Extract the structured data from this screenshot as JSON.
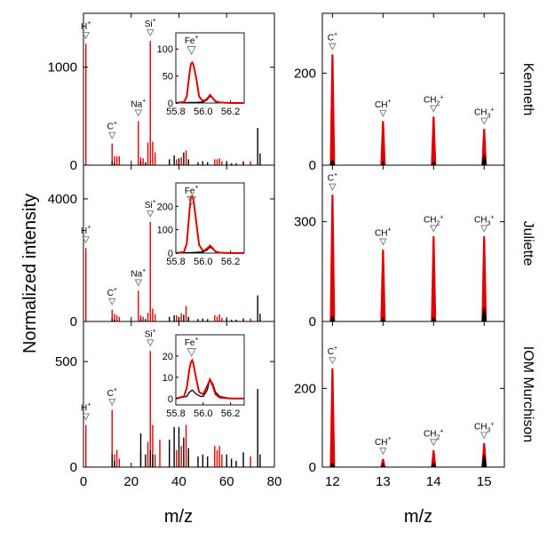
{
  "colors": {
    "red": "#e00000",
    "black": "#000000",
    "marker": "#777777"
  },
  "x_axis_label": "m/z",
  "y_axis_label": "Normalized intensity",
  "chart_data": [
    {
      "type": "bar",
      "sample": "Kenneth",
      "xlim": [
        0,
        80
      ],
      "ylim": [
        0,
        1550
      ],
      "xticks": [
        "0",
        "20",
        "40",
        "60",
        "80"
      ],
      "yticks": [
        {
          "value": 0,
          "label": "0"
        },
        {
          "value": 1000,
          "label": "1000"
        }
      ],
      "series": [
        {
          "color": "red",
          "x": [
            1,
            12,
            13,
            14,
            15,
            23,
            24,
            25,
            27,
            28,
            29,
            30,
            39,
            41,
            43,
            44,
            55,
            56,
            57,
            58,
            70
          ],
          "y": [
            1240,
            220,
            90,
            90,
            90,
            450,
            80,
            70,
            230,
            1270,
            240,
            130,
            60,
            80,
            150,
            40,
            60,
            60,
            70,
            40,
            40
          ]
        },
        {
          "color": "black",
          "x": [
            12,
            13,
            24,
            26,
            36,
            38,
            40,
            42,
            44,
            48,
            50,
            52,
            60,
            62,
            64,
            67,
            73,
            74
          ],
          "y": [
            40,
            20,
            40,
            30,
            60,
            100,
            70,
            130,
            60,
            30,
            40,
            30,
            30,
            20,
            20,
            40,
            380,
            120
          ]
        }
      ],
      "annotations": [
        {
          "label": "H",
          "sup": "+",
          "x": 1,
          "y": 1240
        },
        {
          "label": "C",
          "sup": "+",
          "x": 12,
          "y": 220
        },
        {
          "label": "Na",
          "sup": "+",
          "x": 23,
          "y": 450
        },
        {
          "label": "Si",
          "sup": "+",
          "x": 28,
          "y": 1270
        }
      ],
      "inset": {
        "xlim": [
          55.8,
          56.3
        ],
        "ylim": [
          0,
          130
        ],
        "xticks": [
          {
            "value": 55.8,
            "label": "55.8"
          },
          {
            "value": 56.0,
            "label": "56.0"
          },
          {
            "value": 56.2,
            "label": "56.2"
          }
        ],
        "yticks": [
          {
            "value": 0,
            "label": "0"
          },
          {
            "value": 50,
            "label": "50"
          },
          {
            "value": 100,
            "label": "100"
          }
        ],
        "label": "Fe",
        "sup": "+",
        "series": [
          {
            "color": "red",
            "x": [
              55.8,
              55.86,
              55.88,
              55.9,
              55.91,
              55.92,
              55.93,
              55.95,
              55.97,
              56.0,
              56.03,
              56.05,
              56.07,
              56.09,
              56.12,
              56.2,
              56.3
            ],
            "y": [
              0,
              2,
              12,
              55,
              72,
              75,
              70,
              45,
              12,
              3,
              8,
              15,
              9,
              3,
              1,
              0,
              0
            ]
          },
          {
            "color": "black",
            "x": [
              55.8,
              55.9,
              55.95,
              56.0,
              56.03,
              56.05,
              56.07,
              56.09,
              56.12,
              56.2,
              56.3
            ],
            "y": [
              0,
              1,
              1,
              2,
              6,
              13,
              9,
              4,
              1,
              0,
              0
            ]
          }
        ]
      }
    },
    {
      "type": "bar",
      "sample": "Juliette",
      "xlim": [
        0,
        80
      ],
      "ylim": [
        0,
        5100
      ],
      "xticks": [
        "0",
        "20",
        "40",
        "60",
        "80"
      ],
      "yticks": [
        {
          "value": 0,
          "label": "0"
        },
        {
          "value": 4000,
          "label": "4000"
        }
      ],
      "series": [
        {
          "color": "red",
          "x": [
            1,
            12,
            13,
            14,
            15,
            23,
            24,
            25,
            27,
            28,
            29,
            30,
            39,
            41,
            43,
            44,
            55,
            56,
            57,
            58,
            70
          ],
          "y": [
            2400,
            380,
            250,
            200,
            150,
            1000,
            200,
            150,
            280,
            3250,
            420,
            230,
            200,
            260,
            500,
            120,
            200,
            160,
            230,
            120,
            100
          ]
        },
        {
          "color": "black",
          "x": [
            12,
            13,
            24,
            26,
            36,
            38,
            40,
            42,
            44,
            48,
            50,
            52,
            60,
            62,
            64,
            67,
            73,
            74
          ],
          "y": [
            100,
            60,
            100,
            80,
            150,
            200,
            150,
            220,
            150,
            80,
            100,
            80,
            80,
            60,
            60,
            100,
            850,
            250
          ]
        }
      ],
      "annotations": [
        {
          "label": "H",
          "sup": "+",
          "x": 1,
          "y": 2400
        },
        {
          "label": "C",
          "sup": "+",
          "x": 12,
          "y": 380
        },
        {
          "label": "Na",
          "sup": "+",
          "x": 23,
          "y": 1000
        },
        {
          "label": "Si",
          "sup": "+",
          "x": 28,
          "y": 3250
        }
      ],
      "inset": {
        "xlim": [
          55.8,
          56.3
        ],
        "ylim": [
          0,
          300
        ],
        "xticks": [
          {
            "value": 55.8,
            "label": "55.8"
          },
          {
            "value": 56.0,
            "label": "56.0"
          },
          {
            "value": 56.2,
            "label": "56.2"
          }
        ],
        "yticks": [
          {
            "value": 0,
            "label": "0"
          },
          {
            "value": 100,
            "label": "100"
          },
          {
            "value": 200,
            "label": "200"
          }
        ],
        "label": "Fe",
        "sup": "+",
        "series": [
          {
            "color": "red",
            "x": [
              55.8,
              55.86,
              55.88,
              55.9,
              55.91,
              55.92,
              55.93,
              55.95,
              55.97,
              56.0,
              56.03,
              56.05,
              56.07,
              56.09,
              56.12,
              56.2,
              56.3
            ],
            "y": [
              0,
              5,
              40,
              180,
              240,
              245,
              225,
              130,
              35,
              8,
              20,
              32,
              20,
              6,
              2,
              0,
              0
            ]
          },
          {
            "color": "black",
            "x": [
              55.8,
              55.9,
              55.95,
              56.0,
              56.03,
              56.05,
              56.07,
              56.09,
              56.12,
              56.2,
              56.3
            ],
            "y": [
              0,
              2,
              3,
              5,
              14,
              26,
              18,
              8,
              2,
              0,
              0
            ]
          }
        ]
      }
    },
    {
      "type": "bar",
      "sample": "IOM Murchison",
      "xlim": [
        0,
        80
      ],
      "ylim": [
        0,
        690
      ],
      "xticks": [
        "0",
        "20",
        "40",
        "60",
        "80"
      ],
      "yticks": [
        {
          "value": 0,
          "label": "0"
        },
        {
          "value": 500,
          "label": "500"
        }
      ],
      "series": [
        {
          "color": "red",
          "x": [
            1,
            12,
            13,
            14,
            15,
            24,
            27,
            28,
            29,
            30,
            32,
            39,
            41,
            43,
            44,
            55,
            56,
            57,
            58,
            70
          ],
          "y": [
            200,
            270,
            60,
            80,
            40,
            70,
            120,
            550,
            200,
            60,
            130,
            80,
            100,
            200,
            50,
            100,
            80,
            100,
            60,
            50
          ]
        },
        {
          "color": "black",
          "x": [
            12,
            13,
            24,
            26,
            28,
            29,
            36,
            38,
            40,
            42,
            44,
            48,
            50,
            52,
            60,
            62,
            64,
            67,
            73,
            74
          ],
          "y": [
            60,
            30,
            160,
            60,
            80,
            60,
            130,
            190,
            190,
            140,
            90,
            50,
            60,
            50,
            60,
            40,
            30,
            70,
            370,
            60
          ]
        }
      ],
      "annotations": [
        {
          "label": "H",
          "sup": "+",
          "x": 1,
          "y": 200
        },
        {
          "label": "C",
          "sup": "+",
          "x": 12,
          "y": 270
        },
        {
          "label": "Si",
          "sup": "+",
          "x": 28,
          "y": 550
        }
      ],
      "inset": {
        "xlim": [
          55.8,
          56.3
        ],
        "ylim": [
          -3,
          30
        ],
        "xticks": [
          {
            "value": 55.8,
            "label": "55.8"
          },
          {
            "value": 56.0,
            "label": "56.0"
          },
          {
            "value": 56.2,
            "label": "56.2"
          }
        ],
        "yticks": [
          {
            "value": 0,
            "label": "0"
          },
          {
            "value": 10,
            "label": "10"
          },
          {
            "value": 20,
            "label": "20"
          }
        ],
        "label": "Fe",
        "sup": "+",
        "series": [
          {
            "color": "red",
            "x": [
              55.8,
              55.86,
              55.88,
              55.9,
              55.91,
              55.92,
              55.93,
              55.95,
              55.97,
              56.0,
              56.03,
              56.05,
              56.07,
              56.09,
              56.12,
              56.2,
              56.3
            ],
            "y": [
              0,
              1,
              5,
              14,
              17,
              18,
              16,
              9,
              3,
              2,
              6,
              9,
              6,
              2,
              0.5,
              0,
              0
            ]
          },
          {
            "color": "black",
            "x": [
              55.8,
              55.88,
              55.9,
              55.92,
              55.95,
              55.98,
              56.0,
              56.03,
              56.05,
              56.07,
              56.09,
              56.12,
              56.2,
              56.3
            ],
            "y": [
              0,
              1,
              3,
              4,
              2,
              1,
              1,
              4,
              9,
              7,
              3,
              1,
              0,
              0
            ]
          }
        ]
      }
    },
    {
      "type": "bar",
      "sample": "Kenneth",
      "xlim": [
        11.8,
        15.4
      ],
      "ylim": [
        0,
        330
      ],
      "xticks": [
        "12",
        "13",
        "14",
        "15"
      ],
      "yticks": [
        {
          "value": 0,
          "label": "0"
        },
        {
          "value": 200,
          "label": "200"
        }
      ],
      "series": [
        {
          "color": "red",
          "x": [
            12,
            13,
            14,
            15
          ],
          "y": [
            240,
            95,
            105,
            78
          ]
        },
        {
          "color": "black",
          "x": [
            12,
            13,
            14,
            15
          ],
          "y": [
            10,
            4,
            6,
            22
          ]
        }
      ],
      "annotations": [
        {
          "label": "C",
          "sup": "+",
          "x": 12,
          "y": 240
        },
        {
          "label": "CH",
          "sup": "+",
          "x": 13,
          "y": 95
        },
        {
          "label": "CH",
          "sub": "2",
          "sup": "+",
          "x": 14,
          "y": 105
        },
        {
          "label": "CH",
          "sub": "3",
          "sup": "+",
          "x": 15,
          "y": 78
        }
      ]
    },
    {
      "type": "bar",
      "sample": "Juliette",
      "xlim": [
        11.8,
        15.4
      ],
      "ylim": [
        0,
        470
      ],
      "xticks": [
        "12",
        "13",
        "14",
        "15"
      ],
      "yticks": [
        {
          "value": 0,
          "label": "0"
        },
        {
          "value": 300,
          "label": "300"
        }
      ],
      "series": [
        {
          "color": "red",
          "x": [
            12,
            13,
            14,
            15
          ],
          "y": [
            380,
            215,
            255,
            255
          ]
        },
        {
          "color": "black",
          "x": [
            12,
            13,
            14,
            15
          ],
          "y": [
            15,
            8,
            10,
            40
          ]
        }
      ],
      "annotations": [
        {
          "label": "C",
          "sup": "+",
          "x": 12,
          "y": 380
        },
        {
          "label": "CH",
          "sup": "+",
          "x": 13,
          "y": 215
        },
        {
          "label": "CH",
          "sub": "2",
          "sup": "+",
          "x": 14,
          "y": 255
        },
        {
          "label": "CH",
          "sub": "3",
          "sup": "+",
          "x": 15,
          "y": 255
        }
      ]
    },
    {
      "type": "bar",
      "sample": "IOM Murchison",
      "xlim": [
        11.8,
        15.4
      ],
      "ylim": [
        0,
        370
      ],
      "xticks": [
        "12",
        "13",
        "14",
        "15"
      ],
      "yticks": [
        {
          "value": 0,
          "label": "0"
        },
        {
          "value": 200,
          "label": "200"
        }
      ],
      "series": [
        {
          "color": "red",
          "x": [
            12,
            13,
            14,
            15
          ],
          "y": [
            250,
            20,
            42,
            60
          ]
        },
        {
          "color": "black",
          "x": [
            12,
            13,
            14,
            15
          ],
          "y": [
            10,
            3,
            8,
            30
          ]
        }
      ],
      "annotations": [
        {
          "label": "C",
          "sup": "+",
          "x": 12,
          "y": 250
        },
        {
          "label": "CH",
          "sup": "+",
          "x": 13,
          "y": 20
        },
        {
          "label": "CH",
          "sub": "2",
          "sup": "+",
          "x": 14,
          "y": 42
        },
        {
          "label": "CH",
          "sub": "3",
          "sup": "+",
          "x": 15,
          "y": 60
        }
      ]
    }
  ]
}
